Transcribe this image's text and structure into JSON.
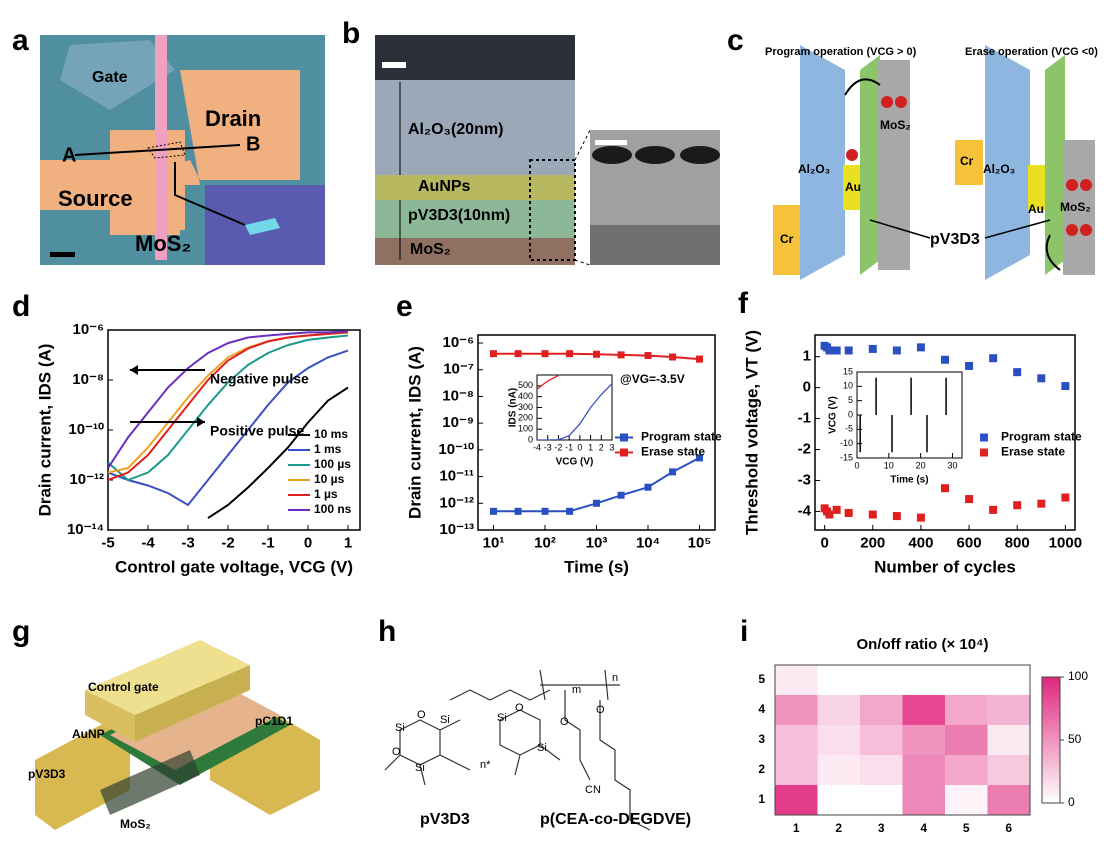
{
  "panel_labels": [
    "a",
    "b",
    "c",
    "d",
    "e",
    "f",
    "g",
    "h",
    "i"
  ],
  "panel_a": {
    "labels": [
      "Gate",
      "Drain",
      "A",
      "B",
      "Source",
      "MoS₂"
    ]
  },
  "panel_b": {
    "labels": [
      "Al₂O₃(20nm)",
      "AuNPs",
      "pV3D3(10nm)",
      "MoS₂"
    ]
  },
  "panel_c": {
    "program_title": "Program operation (VCG > 0)",
    "erase_title": "Erase operation (VCG <0)",
    "program_labels": [
      "Al₂O₃",
      "Au",
      "MoS₂",
      "Cr"
    ],
    "erase_labels": [
      "Cr",
      "Al₂O₃",
      "Au",
      "MoS₂"
    ],
    "dielectric": "pV3D3"
  },
  "panel_g": {
    "labels": [
      "Control gate",
      "AuNP",
      "pC1D1",
      "pV3D3",
      "MoS₂"
    ]
  },
  "panel_h": {
    "left_name": "pV3D3",
    "right_name": "p(CEA-co-DEGDVE)",
    "left_atoms": [
      "Si",
      "O",
      "Si",
      "O",
      "Si",
      "O",
      "Si",
      "Si",
      "n*"
    ],
    "right_atoms": [
      "m",
      "n",
      "O",
      "O",
      "CN"
    ]
  },
  "chart_data": [
    {
      "type": "line",
      "ylog": true,
      "xlabel": "Control gate voltage, VCG (V)",
      "ylabel": "Drain current, IDS (A)",
      "xlim": [
        -5,
        1.3
      ],
      "xticks": [
        -5,
        -4,
        -3,
        -2,
        -1,
        0,
        1
      ],
      "ylim": [
        1e-14,
        1e-06
      ],
      "yticks": [
        {
          "value": 1e-06,
          "label": "10⁻⁶"
        },
        {
          "value": 1e-08,
          "label": "10⁻⁸"
        },
        {
          "value": 1e-10,
          "label": "10⁻¹⁰"
        },
        {
          "value": 1e-12,
          "label": "10⁻¹²"
        },
        {
          "value": 1e-14,
          "label": "10⁻¹⁴"
        }
      ],
      "x": [
        -5,
        -4.5,
        -4,
        -3.5,
        -3,
        -2.5,
        -2,
        -1.5,
        -1,
        -0.5,
        0,
        0.5,
        1
      ],
      "series": [
        {
          "name": "10 ms",
          "color": "#000000",
          "values": [
            null,
            null,
            null,
            null,
            null,
            3e-14,
            1e-13,
            5e-13,
            3e-12,
            2e-11,
            2e-10,
            1.5e-09,
            5e-09
          ]
        },
        {
          "name": "1 ms",
          "color": "#3b4fc4",
          "values": [
            2e-12,
            1e-12,
            6e-13,
            3e-13,
            1e-13,
            1e-12,
            1e-11,
            1e-10,
            1e-09,
            8e-09,
            3e-08,
            8e-08,
            1.5e-07
          ]
        },
        {
          "name": "100 µs",
          "color": "#1a9a8a",
          "values": [
            5e-12,
            1e-12,
            2e-12,
            1e-11,
            1e-10,
            1e-09,
            8e-09,
            4e-08,
            1.2e-07,
            2.5e-07,
            4e-07,
            5e-07,
            6e-07
          ]
        },
        {
          "name": "10 µs",
          "color": "#f0a020",
          "values": [
            2e-12,
            3e-12,
            2e-11,
            2e-10,
            2e-09,
            1.5e-08,
            8e-08,
            2e-07,
            3.5e-07,
            5e-07,
            6e-07,
            7e-07,
            8e-07
          ]
        },
        {
          "name": "1 µs",
          "color": "#e02020",
          "values": [
            1e-12,
            2e-12,
            1e-11,
            1e-10,
            1e-09,
            1e-08,
            6e-08,
            1.8e-07,
            3.5e-07,
            5e-07,
            6e-07,
            7e-07,
            8e-07
          ]
        },
        {
          "name": "100 ns",
          "color": "#6a2ec0",
          "values": [
            3e-12,
            5e-11,
            5e-10,
            5e-09,
            3e-08,
            1.2e-07,
            3e-07,
            5e-07,
            6e-07,
            7e-07,
            8e-07,
            8e-07,
            9e-07
          ]
        }
      ],
      "annotations": [
        "Negative pulse",
        "Positive pulse"
      ],
      "legend": "lower right"
    },
    {
      "type": "line",
      "markers": true,
      "xlog": true,
      "ylog": true,
      "xlabel": "Time (s)",
      "ylabel": "Drain current, IDS (A)",
      "xlim": [
        5,
        200000
      ],
      "xticks": [
        {
          "value": 10,
          "label": "10¹"
        },
        {
          "value": 100,
          "label": "10²"
        },
        {
          "value": 1000,
          "label": "10³"
        },
        {
          "value": 10000,
          "label": "10⁴"
        },
        {
          "value": 100000,
          "label": "10⁵"
        }
      ],
      "ylim": [
        1e-13,
        2e-06
      ],
      "yticks": [
        {
          "value": 1e-06,
          "label": "10⁻⁶"
        },
        {
          "value": 1e-07,
          "label": "10⁻⁷"
        },
        {
          "value": 1e-08,
          "label": "10⁻⁸"
        },
        {
          "value": 1e-09,
          "label": "10⁻⁹"
        },
        {
          "value": 1e-10,
          "label": "10⁻¹⁰"
        },
        {
          "value": 1e-11,
          "label": "10⁻¹¹"
        },
        {
          "value": 1e-12,
          "label": "10⁻¹²"
        },
        {
          "value": 1e-13,
          "label": "10⁻¹³"
        }
      ],
      "x": [
        10,
        30,
        100,
        300,
        1000,
        3000,
        10000,
        30000,
        100000
      ],
      "series": [
        {
          "name": "Program state",
          "color": "#2a4fc0",
          "values": [
            5e-13,
            5e-13,
            5e-13,
            5e-13,
            1e-12,
            2e-12,
            4e-12,
            1.5e-11,
            5e-11
          ]
        },
        {
          "name": "Erase state",
          "color": "#e02020",
          "values": [
            4e-07,
            4e-07,
            4e-07,
            4e-07,
            3.8e-07,
            3.6e-07,
            3.4e-07,
            3e-07,
            2.5e-07
          ]
        }
      ],
      "annotations": [
        "@VG=-3.5V"
      ],
      "legend": "right"
    },
    {
      "type": "line",
      "xlabel": "VCG (V)",
      "ylabel": "IDS (nA)",
      "xlim": [
        -4,
        3
      ],
      "xticks": [
        -4,
        -3,
        -2,
        -1,
        0,
        1,
        2,
        3
      ],
      "ylim": [
        0,
        600
      ],
      "yticks": [
        0,
        100,
        200,
        300,
        400,
        500
      ],
      "x": [
        -4,
        -3,
        -2,
        -1,
        0,
        1,
        2,
        3
      ],
      "series": [
        {
          "color": "#e02020",
          "values": [
            470,
            545,
            595,
            null,
            null,
            null,
            null,
            null
          ]
        },
        {
          "color": "#3b4fc4",
          "values": [
            0,
            0,
            2,
            40,
            150,
            300,
            420,
            520
          ]
        }
      ]
    },
    {
      "type": "scatter",
      "xlabel": "Number of cycles",
      "ylabel": "Threshold voltage, VT (V)",
      "xlim": [
        -40,
        1040
      ],
      "xticks": [
        0,
        200,
        400,
        600,
        800,
        1000
      ],
      "ylim": [
        -4.6,
        1.7
      ],
      "yticks": [
        -4,
        -3,
        -2,
        -1,
        0,
        1
      ],
      "x": [
        0,
        10,
        20,
        50,
        100,
        200,
        300,
        400,
        500,
        600,
        700,
        800,
        900,
        1000
      ],
      "series": [
        {
          "name": "Program state",
          "color": "#2a4fc0",
          "values": [
            1.35,
            1.3,
            1.2,
            1.2,
            1.2,
            1.25,
            1.2,
            1.3,
            0.9,
            0.7,
            0.95,
            0.5,
            0.3,
            0.05
          ]
        },
        {
          "name": "Erase state",
          "color": "#e02020",
          "values": [
            -3.9,
            -4,
            -4.1,
            -3.95,
            -4.05,
            -4.1,
            -4.15,
            -4.2,
            -3.25,
            -3.6,
            -3.95,
            -3.8,
            -3.75,
            -3.55
          ]
        }
      ],
      "legend": "right"
    },
    {
      "type": "pulse",
      "xlabel": "Time (s)",
      "ylabel": "VCG (V)",
      "xlim": [
        0,
        33
      ],
      "xticks": [
        0,
        10,
        20,
        30
      ],
      "ylim": [
        -15,
        15
      ],
      "yticks": [
        -15,
        -10,
        -5,
        0,
        5,
        10,
        15
      ],
      "x": [
        1,
        6,
        11,
        17,
        22,
        28
      ],
      "values": [
        -13,
        13,
        -13,
        13,
        -13,
        13
      ],
      "color": "#000000"
    },
    {
      "type": "heatmap",
      "title": "On/off ratio (× 10⁴)",
      "categories": [
        "1",
        "2",
        "3",
        "4",
        "5",
        "6"
      ],
      "y_categories": [
        "1",
        "2",
        "3",
        "4",
        "5"
      ],
      "values": [
        [
          90,
          0,
          0,
          55,
          5,
          60
        ],
        [
          30,
          10,
          15,
          55,
          40,
          25
        ],
        [
          30,
          15,
          30,
          50,
          60,
          10
        ],
        [
          50,
          20,
          40,
          85,
          40,
          35
        ],
        [
          10,
          null,
          null,
          null,
          null,
          null
        ]
      ],
      "zlim": [
        0,
        100
      ],
      "zticks": [
        0,
        50,
        100
      ],
      "color": "#e0267d"
    }
  ]
}
